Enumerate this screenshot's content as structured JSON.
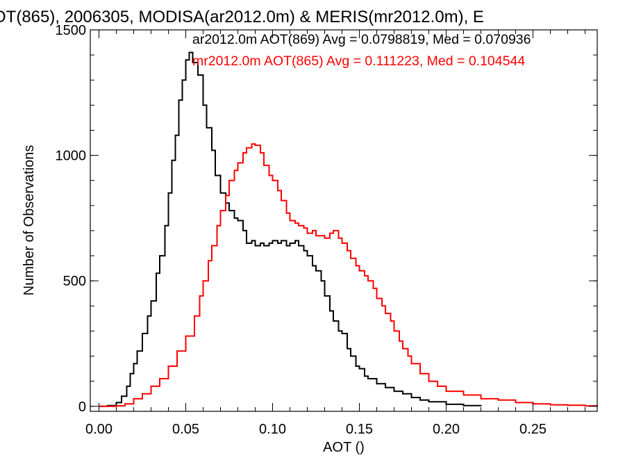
{
  "chart_data": {
    "type": "line",
    "title": "OT(865), 2006305, MODISA(ar2012.0m) & MERIS(mr2012.0m), E",
    "xlabel": "AOT ()",
    "ylabel": "Number of Observations",
    "xlim": [
      -0.005,
      0.287
    ],
    "ylim": [
      -20,
      1500
    ],
    "x_ticks": [
      0.0,
      0.05,
      0.1,
      0.15,
      0.2,
      0.25
    ],
    "x_tick_labels": [
      "0.00",
      "0.05",
      "0.10",
      "0.15",
      "0.20",
      "0.25"
    ],
    "y_ticks": [
      0,
      500,
      1000,
      1500
    ],
    "y_tick_labels": [
      "0",
      "500",
      "1000",
      "1500"
    ],
    "grid": false,
    "legend_position": "top-right",
    "series": [
      {
        "name": "ar2012.0m AOT(869)",
        "stats_label": "ar2012.0m AOT(869) Avg = 0.0798819, Med = 0.070936",
        "color": "#000000",
        "points": [
          [
            0.0,
            0
          ],
          [
            0.005,
            3
          ],
          [
            0.01,
            15
          ],
          [
            0.013,
            40
          ],
          [
            0.016,
            80
          ],
          [
            0.018,
            130
          ],
          [
            0.02,
            170
          ],
          [
            0.022,
            220
          ],
          [
            0.025,
            290
          ],
          [
            0.028,
            360
          ],
          [
            0.03,
            420
          ],
          [
            0.033,
            530
          ],
          [
            0.035,
            600
          ],
          [
            0.038,
            720
          ],
          [
            0.04,
            850
          ],
          [
            0.042,
            980
          ],
          [
            0.044,
            1080
          ],
          [
            0.046,
            1220
          ],
          [
            0.048,
            1300
          ],
          [
            0.05,
            1380
          ],
          [
            0.052,
            1410
          ],
          [
            0.054,
            1370
          ],
          [
            0.057,
            1320
          ],
          [
            0.06,
            1200
          ],
          [
            0.062,
            1110
          ],
          [
            0.065,
            1020
          ],
          [
            0.067,
            920
          ],
          [
            0.07,
            850
          ],
          [
            0.073,
            810
          ],
          [
            0.075,
            780
          ],
          [
            0.078,
            750
          ],
          [
            0.08,
            740
          ],
          [
            0.083,
            700
          ],
          [
            0.085,
            650
          ],
          [
            0.088,
            660
          ],
          [
            0.09,
            640
          ],
          [
            0.093,
            650
          ],
          [
            0.095,
            640
          ],
          [
            0.098,
            650
          ],
          [
            0.1,
            660
          ],
          [
            0.103,
            650
          ],
          [
            0.105,
            660
          ],
          [
            0.108,
            640
          ],
          [
            0.11,
            650
          ],
          [
            0.113,
            660
          ],
          [
            0.115,
            640
          ],
          [
            0.118,
            620
          ],
          [
            0.12,
            600
          ],
          [
            0.123,
            560
          ],
          [
            0.125,
            540
          ],
          [
            0.128,
            500
          ],
          [
            0.13,
            440
          ],
          [
            0.133,
            380
          ],
          [
            0.135,
            340
          ],
          [
            0.138,
            300
          ],
          [
            0.14,
            290
          ],
          [
            0.143,
            230
          ],
          [
            0.145,
            200
          ],
          [
            0.148,
            160
          ],
          [
            0.15,
            150
          ],
          [
            0.153,
            120
          ],
          [
            0.155,
            110
          ],
          [
            0.16,
            90
          ],
          [
            0.165,
            75
          ],
          [
            0.17,
            60
          ],
          [
            0.175,
            50
          ],
          [
            0.18,
            35
          ],
          [
            0.185,
            25
          ],
          [
            0.19,
            18
          ],
          [
            0.2,
            8
          ],
          [
            0.21,
            3
          ],
          [
            0.22,
            0
          ]
        ]
      },
      {
        "name": "mr2012.0m AOT(865)",
        "stats_label": "mr2012.0m AOT(865) Avg = 0.111223, Med = 0.104544",
        "color": "#ff0000",
        "points": [
          [
            0.0,
            0
          ],
          [
            0.01,
            2
          ],
          [
            0.015,
            10
          ],
          [
            0.02,
            30
          ],
          [
            0.025,
            50
          ],
          [
            0.03,
            80
          ],
          [
            0.035,
            110
          ],
          [
            0.04,
            160
          ],
          [
            0.045,
            220
          ],
          [
            0.05,
            280
          ],
          [
            0.055,
            360
          ],
          [
            0.058,
            440
          ],
          [
            0.06,
            500
          ],
          [
            0.063,
            580
          ],
          [
            0.065,
            640
          ],
          [
            0.068,
            720
          ],
          [
            0.07,
            780
          ],
          [
            0.073,
            840
          ],
          [
            0.075,
            900
          ],
          [
            0.078,
            940
          ],
          [
            0.08,
            970
          ],
          [
            0.083,
            1010
          ],
          [
            0.085,
            1030
          ],
          [
            0.088,
            1045
          ],
          [
            0.09,
            1040
          ],
          [
            0.093,
            1010
          ],
          [
            0.095,
            960
          ],
          [
            0.098,
            920
          ],
          [
            0.1,
            900
          ],
          [
            0.103,
            860
          ],
          [
            0.105,
            820
          ],
          [
            0.108,
            770
          ],
          [
            0.11,
            740
          ],
          [
            0.113,
            730
          ],
          [
            0.115,
            720
          ],
          [
            0.118,
            710
          ],
          [
            0.12,
            690
          ],
          [
            0.123,
            700
          ],
          [
            0.125,
            680
          ],
          [
            0.128,
            680
          ],
          [
            0.13,
            670
          ],
          [
            0.133,
            690
          ],
          [
            0.135,
            700
          ],
          [
            0.138,
            670
          ],
          [
            0.14,
            650
          ],
          [
            0.143,
            620
          ],
          [
            0.145,
            590
          ],
          [
            0.148,
            560
          ],
          [
            0.15,
            540
          ],
          [
            0.153,
            520
          ],
          [
            0.155,
            500
          ],
          [
            0.158,
            470
          ],
          [
            0.16,
            430
          ],
          [
            0.163,
            400
          ],
          [
            0.165,
            370
          ],
          [
            0.168,
            340
          ],
          [
            0.17,
            300
          ],
          [
            0.173,
            260
          ],
          [
            0.175,
            230
          ],
          [
            0.178,
            200
          ],
          [
            0.18,
            170
          ],
          [
            0.185,
            130
          ],
          [
            0.19,
            100
          ],
          [
            0.195,
            80
          ],
          [
            0.2,
            60
          ],
          [
            0.21,
            45
          ],
          [
            0.22,
            30
          ],
          [
            0.23,
            25
          ],
          [
            0.24,
            15
          ],
          [
            0.25,
            10
          ],
          [
            0.26,
            6
          ],
          [
            0.27,
            4
          ],
          [
            0.28,
            2
          ],
          [
            0.287,
            1
          ]
        ]
      }
    ]
  }
}
